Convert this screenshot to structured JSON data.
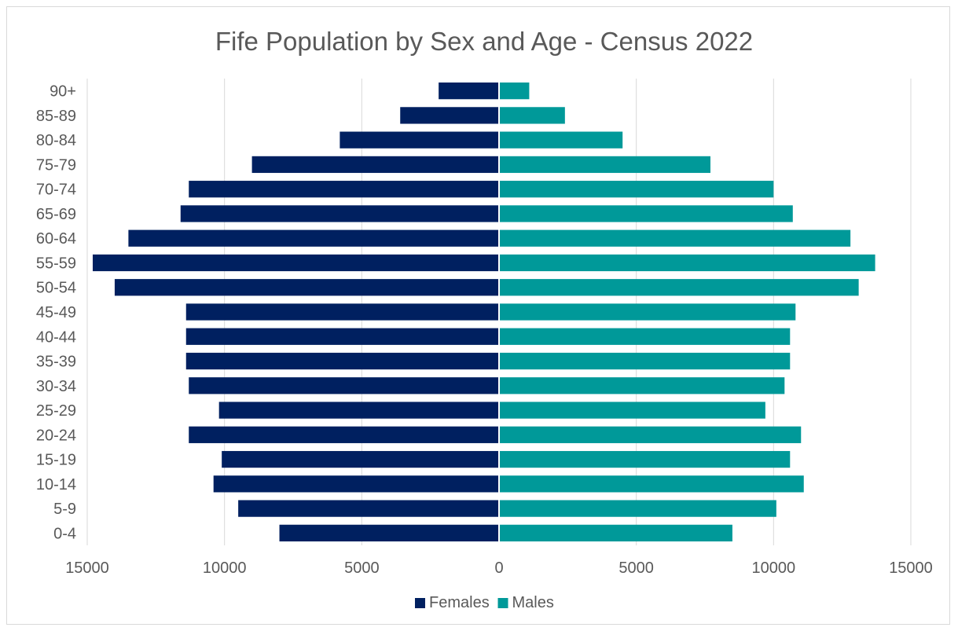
{
  "chart_data": {
    "type": "bar",
    "orientation": "horizontal-pyramid",
    "title": "Fife Population by Sex and Age - Census 2022",
    "xlabel": "",
    "ylabel": "",
    "categories": [
      "0-4",
      "5-9",
      "10-14",
      "15-19",
      "20-24",
      "25-29",
      "30-34",
      "35-39",
      "40-44",
      "45-49",
      "50-54",
      "55-59",
      "60-64",
      "65-69",
      "70-74",
      "75-79",
      "80-84",
      "85-89",
      "90+"
    ],
    "series": [
      {
        "name": "Females",
        "side": "left",
        "color": "#002060",
        "values": [
          8000,
          9500,
          10400,
          10100,
          11300,
          10200,
          11300,
          11400,
          11400,
          11400,
          14000,
          14800,
          13500,
          11600,
          11300,
          9000,
          5800,
          3600,
          2200
        ]
      },
      {
        "name": "Males",
        "side": "right",
        "color": "#009999",
        "values": [
          8500,
          10100,
          11100,
          10600,
          11000,
          9700,
          10400,
          10600,
          10600,
          10800,
          13100,
          13700,
          12800,
          10700,
          10000,
          7700,
          4500,
          2400,
          1100
        ]
      }
    ],
    "xlim": [
      -15000,
      15000
    ],
    "xticks": [
      -15000,
      -10000,
      -5000,
      0,
      5000,
      10000,
      15000
    ],
    "xtick_labels": [
      "15000",
      "10000",
      "5000",
      "0",
      "5000",
      "10000",
      "15000"
    ],
    "grid": "vertical",
    "legend_position": "bottom"
  }
}
